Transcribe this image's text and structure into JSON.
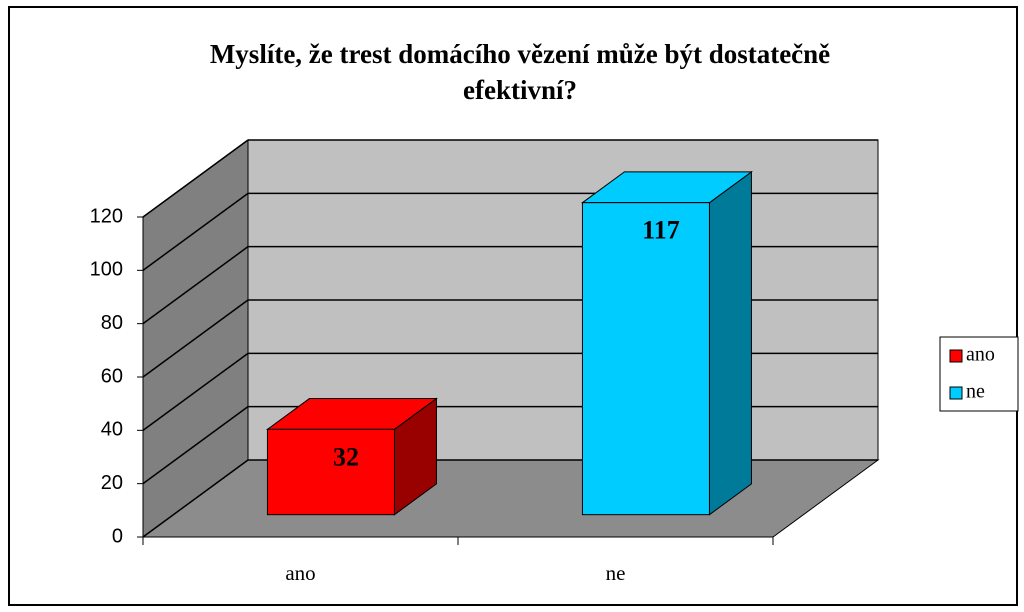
{
  "chart_data": {
    "type": "bar3d",
    "title": "Myslíte, že trest domácího vězení může být dostatečně efektivní?",
    "categories": [
      "ano",
      "ne"
    ],
    "values": [
      32,
      117
    ],
    "colors": [
      "#ff0000",
      "#00ccff"
    ],
    "ylim": [
      0,
      120
    ],
    "yticks": [
      0,
      20,
      40,
      60,
      80,
      100,
      120
    ],
    "grid": true,
    "legend": "right"
  }
}
